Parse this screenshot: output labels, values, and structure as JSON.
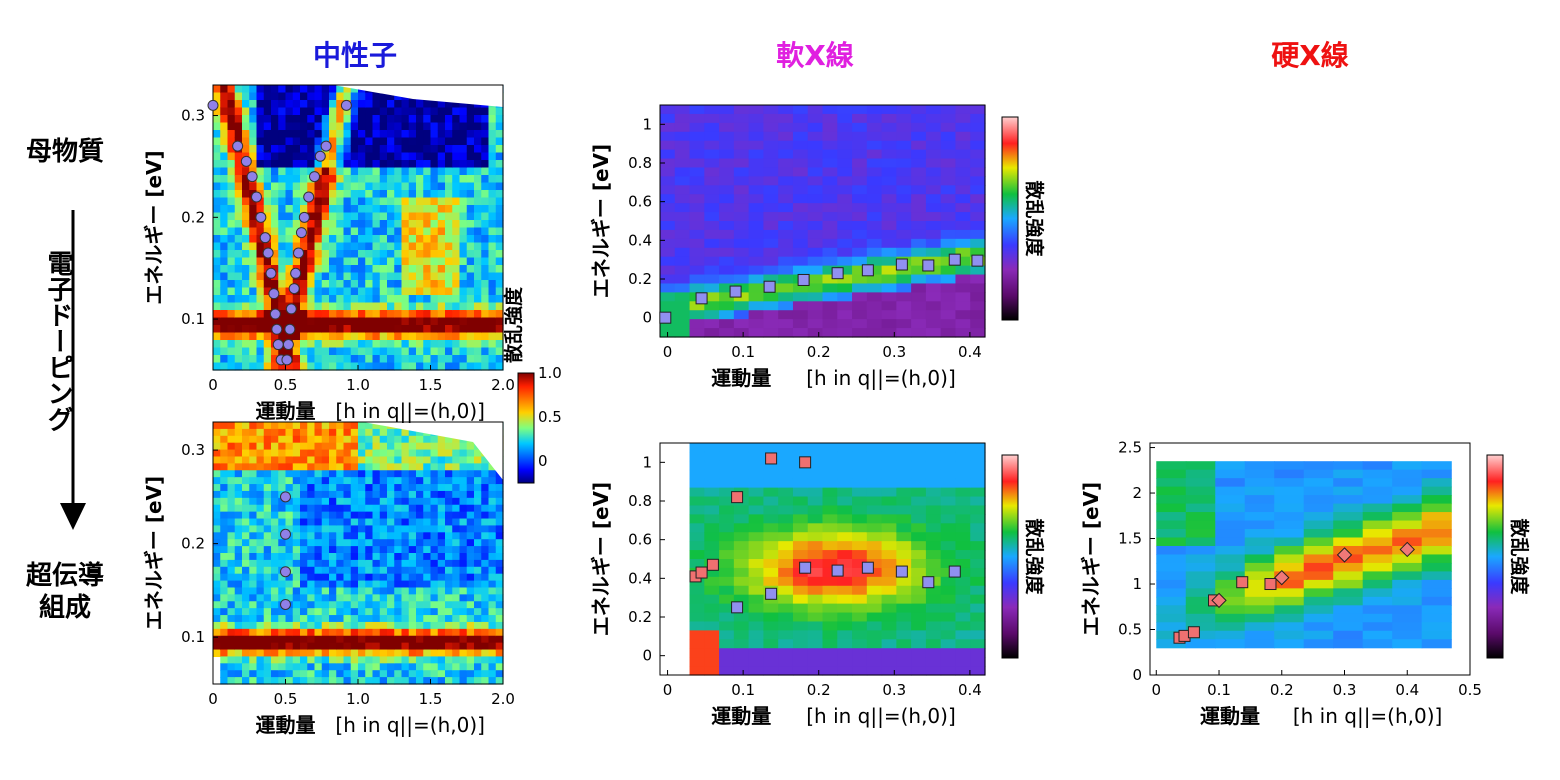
{
  "columns": {
    "neutron": {
      "label": "中性子",
      "color": "#1a1adb"
    },
    "soft_xray": {
      "label": "軟X線",
      "color": "#e020e0"
    },
    "hard_xray": {
      "label": "硬X線",
      "color": "#ee1111"
    }
  },
  "rows": {
    "parent": "母物質",
    "doping": "電子ドーピング",
    "sc_line1": "超伝導",
    "sc_line2": "組成"
  },
  "axes": {
    "energy_label": "エネルギー [eV]",
    "momentum_label": "運動量",
    "momentum_unit_neutron": "[h in q||=(h,0)]",
    "momentum_unit_xray": "[h in q||=(h,0)]",
    "intensity_label": "散乱強度"
  },
  "colorbar_neutron": {
    "ticks": [
      "1.0",
      "0.5",
      "0"
    ]
  },
  "chart_data": [
    {
      "id": "neutron_parent",
      "type": "heatmap",
      "xlabel": "運動量 [h in q||=(h,0)]",
      "ylabel": "エネルギー [eV]",
      "xlim": [
        0,
        2.0
      ],
      "ylim": [
        0.05,
        0.33
      ],
      "xticks": [
        "0",
        "0.5",
        "1.0",
        "1.5",
        "2.0"
      ],
      "yticks": [
        "0.1",
        "0.2",
        "0.3"
      ],
      "points": [
        {
          "x": 0.0,
          "y": 0.31
        },
        {
          "x": 0.17,
          "y": 0.27
        },
        {
          "x": 0.23,
          "y": 0.255
        },
        {
          "x": 0.27,
          "y": 0.24
        },
        {
          "x": 0.3,
          "y": 0.22
        },
        {
          "x": 0.33,
          "y": 0.2
        },
        {
          "x": 0.36,
          "y": 0.18
        },
        {
          "x": 0.38,
          "y": 0.165
        },
        {
          "x": 0.4,
          "y": 0.145
        },
        {
          "x": 0.42,
          "y": 0.125
        },
        {
          "x": 0.43,
          "y": 0.105
        },
        {
          "x": 0.44,
          "y": 0.09
        },
        {
          "x": 0.45,
          "y": 0.075
        },
        {
          "x": 0.47,
          "y": 0.06
        },
        {
          "x": 0.92,
          "y": 0.31
        },
        {
          "x": 0.78,
          "y": 0.27
        },
        {
          "x": 0.74,
          "y": 0.26
        },
        {
          "x": 0.7,
          "y": 0.24
        },
        {
          "x": 0.66,
          "y": 0.22
        },
        {
          "x": 0.63,
          "y": 0.2
        },
        {
          "x": 0.61,
          "y": 0.185
        },
        {
          "x": 0.59,
          "y": 0.165
        },
        {
          "x": 0.57,
          "y": 0.145
        },
        {
          "x": 0.56,
          "y": 0.13
        },
        {
          "x": 0.54,
          "y": 0.11
        },
        {
          "x": 0.53,
          "y": 0.09
        },
        {
          "x": 0.52,
          "y": 0.075
        },
        {
          "x": 0.51,
          "y": 0.06
        }
      ]
    },
    {
      "id": "neutron_sc",
      "type": "heatmap",
      "xlabel": "運動量 [h in q||=(h,0)]",
      "ylabel": "エネルギー [eV]",
      "xlim": [
        0,
        2.0
      ],
      "ylim": [
        0.05,
        0.33
      ],
      "xticks": [
        "0",
        "0.5",
        "1.0",
        "1.5",
        "2.0"
      ],
      "yticks": [
        "0.1",
        "0.2",
        "0.3"
      ],
      "points": [
        {
          "x": 0.5,
          "y": 0.25
        },
        {
          "x": 0.5,
          "y": 0.21
        },
        {
          "x": 0.5,
          "y": 0.17
        },
        {
          "x": 0.5,
          "y": 0.135
        }
      ]
    },
    {
      "id": "softx_parent",
      "type": "heatmap",
      "xlabel": "運動量 [h in q||=(h,0)]",
      "ylabel": "エネルギー [eV]",
      "xlim": [
        -0.01,
        0.42
      ],
      "ylim": [
        -0.1,
        1.1
      ],
      "xticks": [
        "0",
        "0.1",
        "0.2",
        "0.3",
        "0.4"
      ],
      "yticks": [
        "0",
        "0.2",
        "0.4",
        "0.6",
        "0.8",
        "1"
      ],
      "points": [
        {
          "x": -0.003,
          "y": 0.0
        },
        {
          "x": 0.045,
          "y": 0.1
        },
        {
          "x": 0.09,
          "y": 0.135
        },
        {
          "x": 0.135,
          "y": 0.16
        },
        {
          "x": 0.18,
          "y": 0.195
        },
        {
          "x": 0.225,
          "y": 0.23
        },
        {
          "x": 0.265,
          "y": 0.245
        },
        {
          "x": 0.31,
          "y": 0.275
        },
        {
          "x": 0.345,
          "y": 0.27
        },
        {
          "x": 0.38,
          "y": 0.3
        },
        {
          "x": 0.41,
          "y": 0.295
        }
      ]
    },
    {
      "id": "softx_sc",
      "type": "heatmap",
      "xlabel": "運動量 [h in q||=(h,0)]",
      "ylabel": "エネルギー [eV]",
      "xlim": [
        -0.01,
        0.42
      ],
      "ylim": [
        -0.1,
        1.1
      ],
      "xticks": [
        "0",
        "0.1",
        "0.2",
        "0.3",
        "0.4"
      ],
      "yticks": [
        "0",
        "0.2",
        "0.4",
        "0.6",
        "0.8",
        "1"
      ],
      "points_red": [
        {
          "x": 0.037,
          "y": 0.41
        },
        {
          "x": 0.045,
          "y": 0.43
        },
        {
          "x": 0.06,
          "y": 0.47
        },
        {
          "x": 0.092,
          "y": 0.82
        },
        {
          "x": 0.137,
          "y": 1.02
        },
        {
          "x": 0.182,
          "y": 1.0
        }
      ],
      "points_blue": [
        {
          "x": 0.092,
          "y": 0.25
        },
        {
          "x": 0.137,
          "y": 0.32
        },
        {
          "x": 0.182,
          "y": 0.455
        },
        {
          "x": 0.225,
          "y": 0.44
        },
        {
          "x": 0.265,
          "y": 0.455
        },
        {
          "x": 0.31,
          "y": 0.435
        },
        {
          "x": 0.345,
          "y": 0.38
        },
        {
          "x": 0.38,
          "y": 0.435
        }
      ]
    },
    {
      "id": "hardx_sc",
      "type": "heatmap",
      "xlabel": "運動量 [h in q||=(h,0)]",
      "ylabel": "エネルギー [eV]",
      "xlim": [
        -0.01,
        0.5
      ],
      "ylim": [
        0,
        2.55
      ],
      "xticks": [
        "0",
        "0.1",
        "0.2",
        "0.3",
        "0.4",
        "0.5"
      ],
      "yticks": [
        "0",
        "0.5",
        "1",
        "1.5",
        "2",
        "2.5"
      ],
      "points_square": [
        {
          "x": 0.037,
          "y": 0.41
        },
        {
          "x": 0.045,
          "y": 0.43
        },
        {
          "x": 0.06,
          "y": 0.47
        },
        {
          "x": 0.092,
          "y": 0.82
        },
        {
          "x": 0.137,
          "y": 1.02
        },
        {
          "x": 0.182,
          "y": 1.0
        }
      ],
      "points_diamond": [
        {
          "x": 0.1,
          "y": 0.82
        },
        {
          "x": 0.2,
          "y": 1.07
        },
        {
          "x": 0.3,
          "y": 1.32
        },
        {
          "x": 0.4,
          "y": 1.38
        }
      ]
    }
  ]
}
